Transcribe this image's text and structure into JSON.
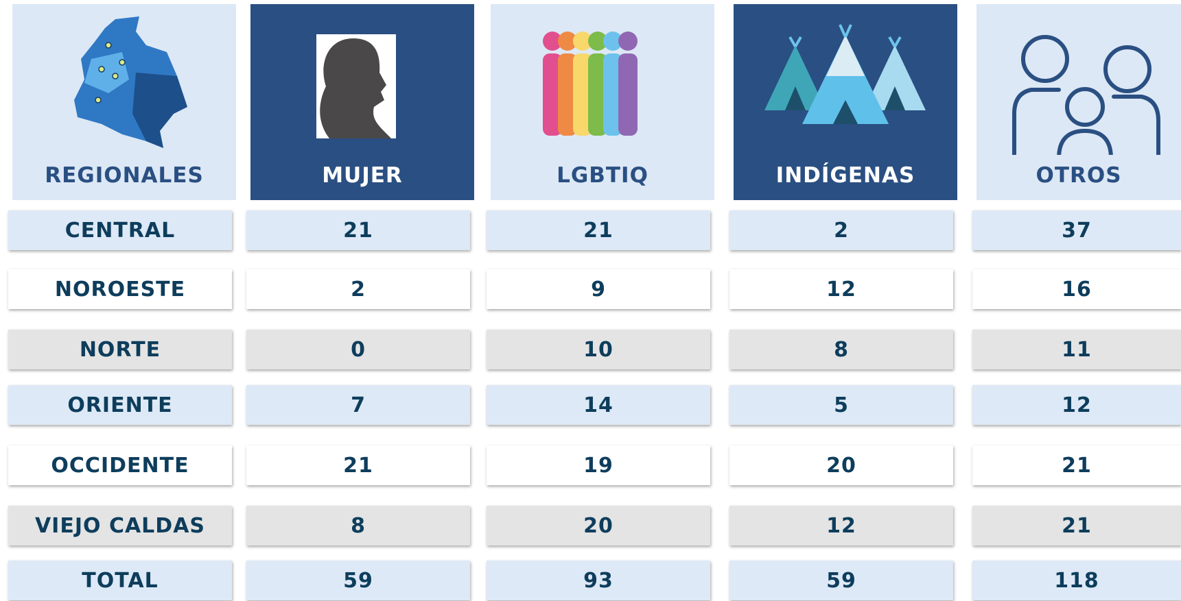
{
  "table": {
    "headers": [
      "REGIONALES",
      "MUJER",
      "LGBTIQ",
      "INDÍGENAS",
      "OTROS"
    ],
    "rows": [
      [
        "CENTRAL",
        21,
        21,
        2,
        37
      ],
      [
        "NOROESTE",
        2,
        9,
        12,
        16
      ],
      [
        "NORTE",
        0,
        10,
        8,
        11
      ],
      [
        "ORIENTE",
        7,
        14,
        5,
        12
      ],
      [
        "OCCIDENTE",
        21,
        19,
        20,
        21
      ],
      [
        "VIEJO CALDAS",
        8,
        20,
        12,
        21
      ],
      [
        "TOTAL",
        59,
        93,
        59,
        118
      ]
    ]
  }
}
